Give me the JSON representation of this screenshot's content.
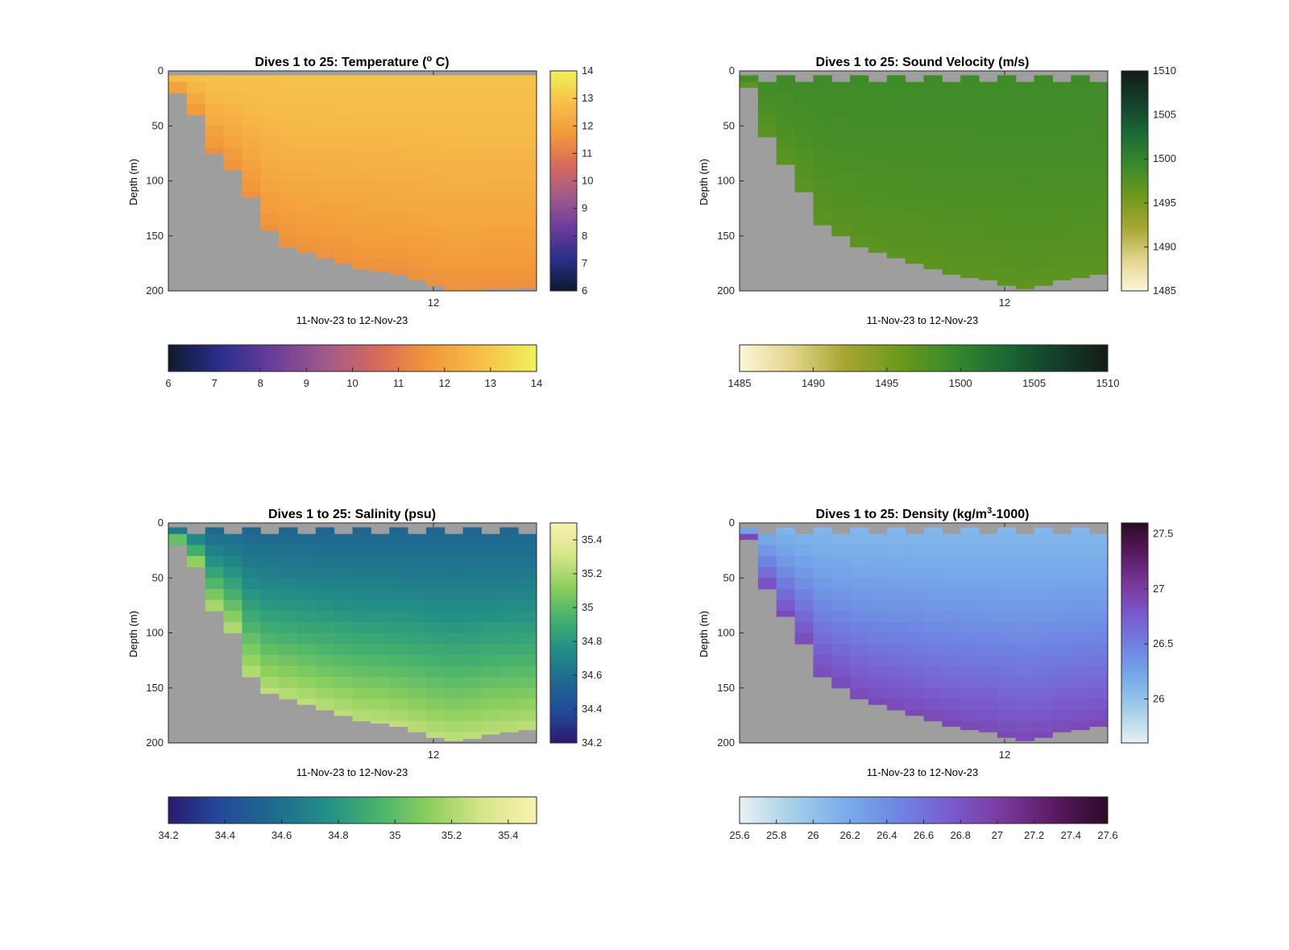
{
  "chart_data": [
    {
      "type": "heatmap",
      "title": "Dives 1 to 25: Temperature (",
      "title_sup": "o",
      "title_end": " C)",
      "xlabel": "11-Nov-23 to 12-Nov-23",
      "ylabel": "Depth (m)",
      "x_tick_labels": [
        "12"
      ],
      "ylim": [
        0,
        200
      ],
      "y_ticks": [
        0,
        50,
        100,
        150,
        200
      ],
      "clim": [
        6,
        14
      ],
      "colorbar_ticks": [
        6,
        7,
        8,
        9,
        10,
        11,
        12,
        13,
        14
      ],
      "colormap": [
        "#0d1b2a",
        "#2b2e8c",
        "#6a3d9a",
        "#a05a8a",
        "#d86a5a",
        "#f29a3a",
        "#f7c04a",
        "#eef25a"
      ],
      "bottom_depth_m": [
        20,
        40,
        75,
        90,
        115,
        145,
        160,
        165,
        170,
        175,
        180,
        182,
        185,
        190,
        195,
        200,
        200,
        198,
        198,
        197
      ],
      "surface_value": 12.9,
      "bottom_value": 11.5,
      "invalid_color": "#9e9e9e"
    },
    {
      "type": "heatmap",
      "title": "Dives 1 to 25: Sound Velocity (m/s)",
      "xlabel": "11-Nov-23 to 12-Nov-23",
      "ylabel": "Depth (m)",
      "x_tick_labels": [
        "12"
      ],
      "ylim": [
        0,
        200
      ],
      "y_ticks": [
        0,
        50,
        100,
        150,
        200
      ],
      "clim": [
        1485,
        1510
      ],
      "colorbar_ticks": [
        1485,
        1490,
        1495,
        1500,
        1505,
        1510
      ],
      "colormap": [
        "#fbf7d8",
        "#e3d48c",
        "#a7a630",
        "#6f9a1c",
        "#3a8a2a",
        "#1b6a35",
        "#14402c",
        "#141c16"
      ],
      "bottom_depth_m": [
        15,
        60,
        85,
        110,
        140,
        150,
        160,
        165,
        170,
        175,
        180,
        185,
        188,
        190,
        195,
        198,
        195,
        190,
        188,
        185
      ],
      "surface_value": 1499.0,
      "bottom_value": 1497.0,
      "invalid_color": "#9e9e9e"
    },
    {
      "type": "heatmap",
      "title": "Dives 1 to 25: Salinity (psu)",
      "xlabel": "11-Nov-23 to 12-Nov-23",
      "ylabel": "Depth (m)",
      "x_tick_labels": [
        "12"
      ],
      "ylim": [
        0,
        200
      ],
      "y_ticks": [
        0,
        50,
        100,
        150,
        200
      ],
      "clim": [
        34.2,
        35.5
      ],
      "colorbar_ticks": [
        34.2,
        34.4,
        34.6,
        34.8,
        35,
        35.2,
        35.4
      ],
      "colormap": [
        "#2a1a6e",
        "#234a9a",
        "#1f6a90",
        "#238f86",
        "#47b36c",
        "#8fd05e",
        "#d8e68a",
        "#f8f2b0"
      ],
      "bottom_depth_m": [
        20,
        40,
        80,
        100,
        140,
        155,
        160,
        165,
        170,
        175,
        180,
        182,
        185,
        190,
        195,
        198,
        196,
        192,
        190,
        188
      ],
      "surface_value": 34.55,
      "bottom_value": 35.25,
      "invalid_color": "#9e9e9e"
    },
    {
      "type": "heatmap",
      "title": "Dives 1 to 25: Density (kg/m",
      "title_sup": "3",
      "title_end": "-1000)",
      "xlabel": "11-Nov-23 to 12-Nov-23",
      "ylabel": "Depth (m)",
      "x_tick_labels": [
        "12"
      ],
      "ylim": [
        0,
        200
      ],
      "y_ticks": [
        0,
        50,
        100,
        150,
        200
      ],
      "clim": [
        25.6,
        27.6
      ],
      "colorbar_ticks_right": [
        "26",
        "26.5",
        "27",
        "27.5"
      ],
      "colorbar_ticks_right_values": [
        26,
        26.5,
        27,
        27.5
      ],
      "colorbar_ticks": [
        25.6,
        25.8,
        26,
        26.2,
        26.4,
        26.6,
        26.8,
        27,
        27.2,
        27.4,
        27.6
      ],
      "colormap": [
        "#e6f2f4",
        "#a7cfe8",
        "#78aeea",
        "#6e86e2",
        "#7a5ccf",
        "#7a3a9e",
        "#5a1a62",
        "#2b0a24"
      ],
      "bottom_depth_m": [
        15,
        60,
        85,
        110,
        140,
        150,
        160,
        165,
        170,
        175,
        180,
        185,
        188,
        190,
        195,
        198,
        195,
        190,
        188,
        185
      ],
      "surface_value": 26.1,
      "bottom_value": 26.9,
      "invalid_color": "#9e9e9e"
    }
  ]
}
